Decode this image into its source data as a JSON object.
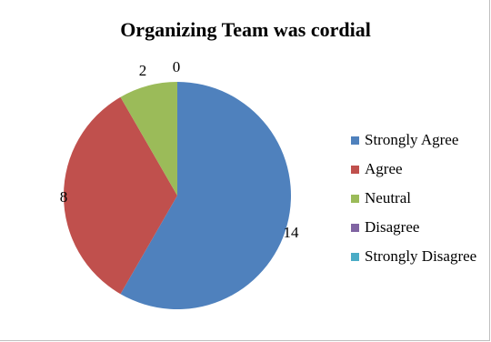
{
  "chart_data": {
    "type": "pie",
    "title": "Organizing Team was cordial",
    "categories": [
      "Strongly Agree",
      "Agree",
      "Neutral",
      "Disagree",
      "Strongly Disagree"
    ],
    "values": [
      14,
      8,
      2,
      0,
      0
    ],
    "colors": [
      "#4f81bd",
      "#c0504d",
      "#9bbb59",
      "#8064a2",
      "#4bacc6"
    ],
    "data_labels": [
      "14",
      "8",
      "2",
      "0",
      ""
    ],
    "legend_position": "right"
  }
}
